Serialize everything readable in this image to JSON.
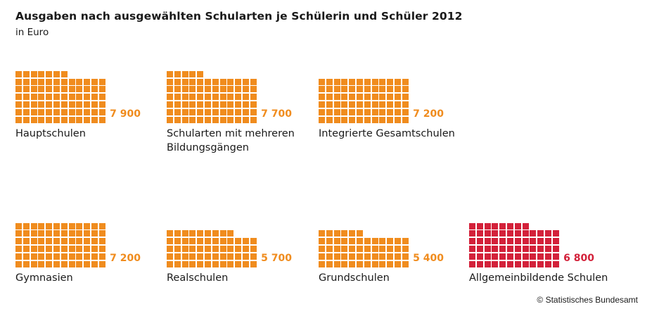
{
  "chart_data": {
    "type": "bar",
    "title": "Ausgaben nach ausgewählten Schularten je Schülerin und Schüler 2012",
    "subtitle": "in Euro",
    "unit": "Euro",
    "categories": [
      "Hauptschulen",
      "Schularten mit mehreren Bildungsgängen",
      "Integrierte Gesamtschulen",
      "Gymnasien",
      "Realschulen",
      "Grundschulen",
      "Allgemeinbildende Schulen"
    ],
    "values": [
      7900,
      7700,
      7200,
      7200,
      5700,
      5400,
      6800
    ],
    "display_values": [
      "7 900",
      "7 700",
      "7 200",
      "7 200",
      "5 700",
      "5 400",
      "6 800"
    ],
    "label_lines": [
      [
        "Hauptschulen"
      ],
      [
        "Schularten mit mehreren",
        "Bildungsgängen"
      ],
      [
        "Integrierte Gesamtschulen"
      ],
      [
        "Gymnasien"
      ],
      [
        "Realschulen"
      ],
      [
        "Grundschulen"
      ],
      [
        "Allgemeinbildende Schulen"
      ]
    ],
    "highlight": [
      false,
      false,
      false,
      false,
      false,
      false,
      true
    ],
    "euro_per_square": 100,
    "colors": {
      "standard": "#f08c1e",
      "highlight": "#d3213a"
    }
  },
  "source": "© Statistisches Bundesamt"
}
